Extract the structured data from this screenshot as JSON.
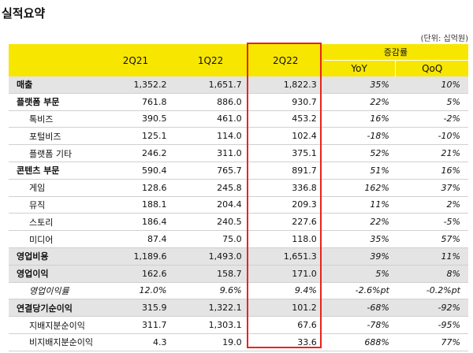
{
  "title": "실적요약",
  "unit_note": "(단위: 십억원)",
  "colors": {
    "header_bg": "#f7e600",
    "row_shade": "#e4e4e4",
    "highlight": "#e8231e"
  },
  "header": {
    "periods": [
      "2Q21",
      "1Q22",
      "2Q22"
    ],
    "growth": "증감률",
    "yoy": "YoY",
    "qoq": "QoQ"
  },
  "rows": [
    {
      "label": "매출",
      "level": "major",
      "shade": true,
      "values": [
        "1,352.2",
        "1,651.7",
        "1,822.3"
      ],
      "yoy": "35%",
      "qoq": "10%"
    },
    {
      "label": "플랫폼 부문",
      "level": "major",
      "shade": false,
      "values": [
        "761.8",
        "886.0",
        "930.7"
      ],
      "yoy": "22%",
      "qoq": "5%"
    },
    {
      "label": "톡비즈",
      "level": "sub",
      "shade": false,
      "values": [
        "390.5",
        "461.0",
        "453.2"
      ],
      "yoy": "16%",
      "qoq": "-2%"
    },
    {
      "label": "포털비즈",
      "level": "sub",
      "shade": false,
      "values": [
        "125.1",
        "114.0",
        "102.4"
      ],
      "yoy": "-18%",
      "qoq": "-10%"
    },
    {
      "label": "플랫폼 기타",
      "level": "sub",
      "shade": false,
      "values": [
        "246.2",
        "311.0",
        "375.1"
      ],
      "yoy": "52%",
      "qoq": "21%"
    },
    {
      "label": "콘텐츠 부문",
      "level": "major",
      "shade": false,
      "values": [
        "590.4",
        "765.7",
        "891.7"
      ],
      "yoy": "51%",
      "qoq": "16%"
    },
    {
      "label": "게임",
      "level": "sub",
      "shade": false,
      "values": [
        "128.6",
        "245.8",
        "336.8"
      ],
      "yoy": "162%",
      "qoq": "37%"
    },
    {
      "label": "뮤직",
      "level": "sub",
      "shade": false,
      "values": [
        "188.1",
        "204.4",
        "209.3"
      ],
      "yoy": "11%",
      "qoq": "2%"
    },
    {
      "label": "스토리",
      "level": "sub",
      "shade": false,
      "values": [
        "186.4",
        "240.5",
        "227.6"
      ],
      "yoy": "22%",
      "qoq": "-5%"
    },
    {
      "label": "미디어",
      "level": "sub",
      "shade": false,
      "values": [
        "87.4",
        "75.0",
        "118.0"
      ],
      "yoy": "35%",
      "qoq": "57%"
    },
    {
      "label": "영업비용",
      "level": "major",
      "shade": true,
      "values": [
        "1,189.6",
        "1,493.0",
        "1,651.3"
      ],
      "yoy": "39%",
      "qoq": "11%"
    },
    {
      "label": "영업이익",
      "level": "major",
      "shade": true,
      "values": [
        "162.6",
        "158.7",
        "171.0"
      ],
      "yoy": "5%",
      "qoq": "8%"
    },
    {
      "label": "영업이익률",
      "level": "sub",
      "italic": true,
      "shade": false,
      "values": [
        "12.0%",
        "9.6%",
        "9.4%"
      ],
      "yoy": "-2.6%pt",
      "qoq": "-0.2%pt"
    },
    {
      "label": "연결당기순이익",
      "level": "major",
      "shade": true,
      "values": [
        "315.9",
        "1,322.1",
        "101.2"
      ],
      "yoy": "-68%",
      "qoq": "-92%"
    },
    {
      "label": "지배지분순이익",
      "level": "sub",
      "shade": false,
      "values": [
        "311.7",
        "1,303.1",
        "67.6"
      ],
      "yoy": "-78%",
      "qoq": "-95%"
    },
    {
      "label": "비지배지분순이익",
      "level": "sub",
      "shade": false,
      "values": [
        "4.3",
        "19.0",
        "33.6"
      ],
      "yoy": "688%",
      "qoq": "77%"
    }
  ]
}
